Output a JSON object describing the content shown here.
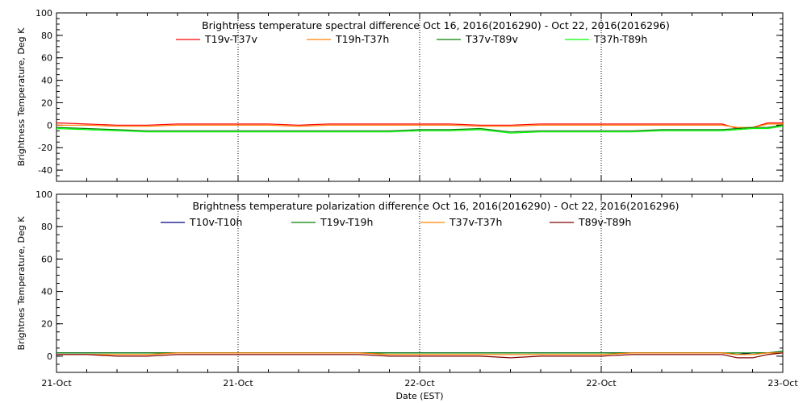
{
  "chart_data": [
    {
      "type": "line",
      "title": "Brightness temperature spectral difference     Oct 16, 2016(2016290) - Oct 22, 2016(2016296)",
      "ylabel": "Brightness Temperature, Deg K",
      "ylim": [
        -50,
        100
      ],
      "yticks": [
        -40,
        -20,
        0,
        20,
        40,
        60,
        80,
        100
      ],
      "xlim": [
        0,
        48
      ],
      "xtick_labels": [
        "21-Oct",
        "21-Oct",
        "22-Oct",
        "22-Oct",
        "23-Oct"
      ],
      "xtick_positions": [
        0,
        12,
        24,
        36,
        48
      ],
      "grid": "dotted vertical lines at x ticks",
      "legend_placement": "top",
      "x": [
        0,
        2,
        4,
        6,
        8,
        10,
        12,
        14,
        16,
        18,
        20,
        22,
        24,
        26,
        28,
        30,
        32,
        34,
        36,
        38,
        40,
        42,
        44,
        45,
        46,
        47,
        48
      ],
      "series": [
        {
          "name": "T19v-T37v",
          "color": "#ff0000",
          "values": [
            2,
            1,
            0,
            0,
            1,
            1,
            1,
            1,
            0,
            1,
            1,
            1,
            1,
            1,
            0,
            0,
            1,
            1,
            1,
            1,
            1,
            1,
            1,
            -3,
            -2,
            2,
            2
          ]
        },
        {
          "name": "T19h-T37h",
          "color": "#ff8000",
          "values": [
            0,
            0,
            -1,
            -1,
            0,
            0,
            0,
            0,
            -1,
            0,
            0,
            0,
            0,
            0,
            -1,
            -1,
            0,
            0,
            0,
            0,
            0,
            0,
            0,
            -2,
            -2,
            1,
            1
          ]
        },
        {
          "name": "T37v-T89v",
          "color": "#008000",
          "values": [
            -2,
            -3,
            -4,
            -5,
            -5,
            -5,
            -5,
            -5,
            -5,
            -5,
            -5,
            -5,
            -4,
            -4,
            -3,
            -6,
            -5,
            -5,
            -5,
            -5,
            -4,
            -4,
            -4,
            -3,
            -2,
            -2,
            0
          ]
        },
        {
          "name": "T37h-T89h",
          "color": "#00ff00",
          "values": [
            -3,
            -4,
            -5,
            -6,
            -6,
            -6,
            -6,
            -6,
            -6,
            -6,
            -6,
            -6,
            -5,
            -5,
            -4,
            -7,
            -6,
            -6,
            -6,
            -6,
            -5,
            -5,
            -5,
            -4,
            -3,
            -3,
            -1
          ]
        }
      ]
    },
    {
      "type": "line",
      "title": "Brightness temperature polarization difference     Oct 16, 2016(2016290) - Oct 22, 2016(2016296)",
      "ylabel": "Brightnes Temperature, Deg K",
      "xlabel": "Date (EST)",
      "ylim": [
        -10,
        100
      ],
      "yticks": [
        0,
        20,
        40,
        60,
        80,
        100
      ],
      "xlim": [
        0,
        48
      ],
      "xtick_labels": [
        "21-Oct",
        "21-Oct",
        "22-Oct",
        "22-Oct",
        "23-Oct"
      ],
      "xtick_positions": [
        0,
        12,
        24,
        36,
        48
      ],
      "grid": "dotted vertical lines at x ticks",
      "legend_placement": "top",
      "x": [
        0,
        2,
        4,
        6,
        8,
        10,
        12,
        14,
        16,
        18,
        20,
        22,
        24,
        26,
        28,
        30,
        32,
        34,
        36,
        38,
        40,
        42,
        44,
        45,
        46,
        47,
        48
      ],
      "series": [
        {
          "name": "T10v-T10h",
          "color": "#000080",
          "values": [
            2,
            2,
            2,
            2,
            2,
            2,
            2,
            2,
            2,
            2,
            2,
            2,
            2,
            2,
            2,
            2,
            2,
            2,
            2,
            2,
            2,
            2,
            2,
            1,
            2,
            2,
            3
          ]
        },
        {
          "name": "T19v-T19h",
          "color": "#008000",
          "values": [
            2,
            2,
            2,
            2,
            2,
            2,
            2,
            2,
            2,
            2,
            2,
            2,
            2,
            2,
            2,
            2,
            2,
            2,
            2,
            2,
            2,
            2,
            2,
            2,
            2,
            2,
            3
          ]
        },
        {
          "name": "T37v-T37h",
          "color": "#ff8000",
          "values": [
            1,
            1,
            1,
            1,
            2,
            2,
            2,
            2,
            2,
            2,
            2,
            1,
            1,
            1,
            1,
            1,
            1,
            1,
            1,
            2,
            2,
            2,
            2,
            1,
            1,
            2,
            2
          ]
        },
        {
          "name": "T89v-T89h",
          "color": "#800000",
          "values": [
            1,
            1,
            0,
            0,
            1,
            1,
            1,
            1,
            1,
            1,
            1,
            0,
            0,
            0,
            0,
            -1,
            0,
            0,
            0,
            1,
            1,
            1,
            1,
            -1,
            -1,
            1,
            2
          ]
        }
      ]
    }
  ]
}
